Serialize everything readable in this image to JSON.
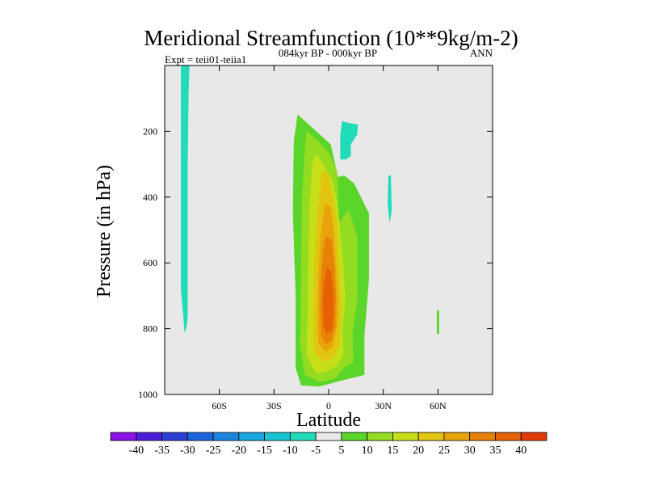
{
  "chart_data": {
    "type": "contour",
    "title": "Meridional Streamfunction (10**9kg/m-2)",
    "subtitle_left": "Expt = teii01-teiia1",
    "subtitle_center": "084kyr BP - 000kyr BP",
    "subtitle_right": "ANN",
    "xlabel": "Latitude",
    "ylabel": "Pressure (in hPa)",
    "xlim": [
      -90,
      90
    ],
    "ylim": [
      1000,
      0
    ],
    "x_ticks": [
      {
        "value": -60,
        "label": "60S"
      },
      {
        "value": -30,
        "label": "30S"
      },
      {
        "value": 0,
        "label": "0"
      },
      {
        "value": 30,
        "label": "30N"
      },
      {
        "value": 60,
        "label": "60N"
      }
    ],
    "y_ticks": [
      {
        "value": 200,
        "label": "200"
      },
      {
        "value": 400,
        "label": "400"
      },
      {
        "value": 600,
        "label": "600"
      },
      {
        "value": 800,
        "label": "800"
      },
      {
        "value": 1000,
        "label": "1000"
      }
    ],
    "colorbar": {
      "labels": [
        "-40",
        "-35",
        "-30",
        "-25",
        "-20",
        "-15",
        "-10",
        "-5",
        "5",
        "10",
        "15",
        "20",
        "25",
        "30",
        "35",
        "40"
      ],
      "colors": [
        "#8a12e6",
        "#4b1fd8",
        "#2b3fd6",
        "#1d63db",
        "#1985dc",
        "#18a7dc",
        "#19c4d2",
        "#21dcb8",
        "#e8e8e8",
        "#5ad62a",
        "#93dc22",
        "#c7df18",
        "#e2c511",
        "#e7a40c",
        "#e78207",
        "#e56104",
        "#e03c02"
      ]
    },
    "background_color": "#e8e8e8",
    "regions": [
      {
        "level": -10,
        "color": "#21dcb8",
        "points": [
          [
            -81,
            0
          ],
          [
            -76.5,
            0
          ],
          [
            -77,
            80
          ],
          [
            -77.5,
            300
          ],
          [
            -77.5,
            600
          ],
          [
            -77.5,
            760
          ],
          [
            -78,
            790
          ],
          [
            -79,
            810
          ],
          [
            -79.5,
            775
          ],
          [
            -81,
            680
          ],
          [
            -81,
            300
          ]
        ]
      },
      {
        "level": -10,
        "color": "#21dcb8",
        "points": [
          [
            6.5,
            210
          ],
          [
            7.5,
            170
          ],
          [
            10.5,
            175
          ],
          [
            16,
            180
          ],
          [
            15.5,
            210
          ],
          [
            12,
            240
          ],
          [
            12,
            275
          ],
          [
            9.5,
            285
          ],
          [
            6.5,
            285
          ]
        ]
      },
      {
        "level": -10,
        "color": "#21dcb8",
        "points": [
          [
            33,
            335
          ],
          [
            34,
            335
          ],
          [
            34.5,
            440
          ],
          [
            33.5,
            475
          ],
          [
            32.5,
            420
          ]
        ]
      },
      {
        "level": 5,
        "color": "#5ad62a",
        "points": [
          [
            59.5,
            745
          ],
          [
            60.5,
            745
          ],
          [
            60.5,
            815
          ],
          [
            59.5,
            815
          ]
        ]
      },
      {
        "level": 5,
        "color": "#5ad62a",
        "points": [
          [
            -19,
            230
          ],
          [
            -17,
            150
          ],
          [
            -11,
            180
          ],
          [
            -5,
            210
          ],
          [
            1,
            240
          ],
          [
            5,
            340
          ],
          [
            8.5,
            335
          ],
          [
            14,
            360
          ],
          [
            22,
            450
          ],
          [
            22,
            650
          ],
          [
            19.5,
            820
          ],
          [
            19.5,
            940
          ],
          [
            5,
            960
          ],
          [
            -5,
            975
          ],
          [
            -15,
            972
          ],
          [
            -18,
            920
          ],
          [
            -18,
            700
          ],
          [
            -19.5,
            450
          ]
        ]
      },
      {
        "level": 10,
        "color": "#93dc22",
        "points": [
          [
            -13,
            260
          ],
          [
            -12,
            200
          ],
          [
            -6,
            230
          ],
          [
            0,
            265
          ],
          [
            4.5,
            320
          ],
          [
            5.5,
            480
          ],
          [
            11,
            440
          ],
          [
            15.5,
            520
          ],
          [
            15.5,
            720
          ],
          [
            13,
            810
          ],
          [
            13.5,
            900
          ],
          [
            8,
            920
          ],
          [
            4,
            950
          ],
          [
            -5,
            962
          ],
          [
            -13,
            940
          ],
          [
            -15.5,
            850
          ],
          [
            -15,
            600
          ],
          [
            -14.5,
            400
          ]
        ]
      },
      {
        "level": 15,
        "color": "#c7df18",
        "points": [
          [
            -9,
            300
          ],
          [
            -7,
            270
          ],
          [
            -3,
            300
          ],
          [
            2,
            350
          ],
          [
            5,
            430
          ],
          [
            6.5,
            520
          ],
          [
            8,
            610
          ],
          [
            9,
            720
          ],
          [
            7.5,
            800
          ],
          [
            8,
            880
          ],
          [
            4,
            915
          ],
          [
            -1,
            930
          ],
          [
            -7,
            935
          ],
          [
            -12,
            880
          ],
          [
            -11.5,
            760
          ],
          [
            -11,
            600
          ],
          [
            -10.5,
            450
          ]
        ]
      },
      {
        "level": 20,
        "color": "#e2c511",
        "points": [
          [
            -4,
            330
          ],
          [
            -1,
            320
          ],
          [
            2,
            390
          ],
          [
            4.5,
            470
          ],
          [
            5,
            560
          ],
          [
            6,
            650
          ],
          [
            6.8,
            750
          ],
          [
            6,
            850
          ],
          [
            2,
            890
          ],
          [
            -3,
            900
          ],
          [
            -8,
            870
          ],
          [
            -8.2,
            750
          ],
          [
            -7.6,
            600
          ],
          [
            -6.5,
            480
          ],
          [
            -5,
            400
          ]
        ]
      },
      {
        "level": 25,
        "color": "#e7a40c",
        "points": [
          [
            -2,
            420
          ],
          [
            1,
            430
          ],
          [
            3,
            520
          ],
          [
            4,
            620
          ],
          [
            5,
            720
          ],
          [
            4.3,
            800
          ],
          [
            2,
            855
          ],
          [
            -2,
            870
          ],
          [
            -5.5,
            845
          ],
          [
            -6,
            760
          ],
          [
            -5.4,
            630
          ],
          [
            -4.3,
            520
          ]
        ]
      },
      {
        "level": 30,
        "color": "#e78207",
        "points": [
          [
            -1.5,
            520
          ],
          [
            1.5,
            530
          ],
          [
            3,
            610
          ],
          [
            3.8,
            700
          ],
          [
            3.5,
            790
          ],
          [
            1.7,
            835
          ],
          [
            -1.5,
            845
          ],
          [
            -4,
            820
          ],
          [
            -4.5,
            740
          ],
          [
            -4,
            640
          ],
          [
            -3,
            570
          ]
        ]
      },
      {
        "level": 35,
        "color": "#e56104",
        "points": [
          [
            -1,
            615
          ],
          [
            1.3,
            625
          ],
          [
            2.4,
            690
          ],
          [
            2.6,
            760
          ],
          [
            1.5,
            805
          ],
          [
            -1,
            815
          ],
          [
            -2.8,
            790
          ],
          [
            -3,
            720
          ],
          [
            -2.5,
            660
          ]
        ]
      }
    ]
  }
}
